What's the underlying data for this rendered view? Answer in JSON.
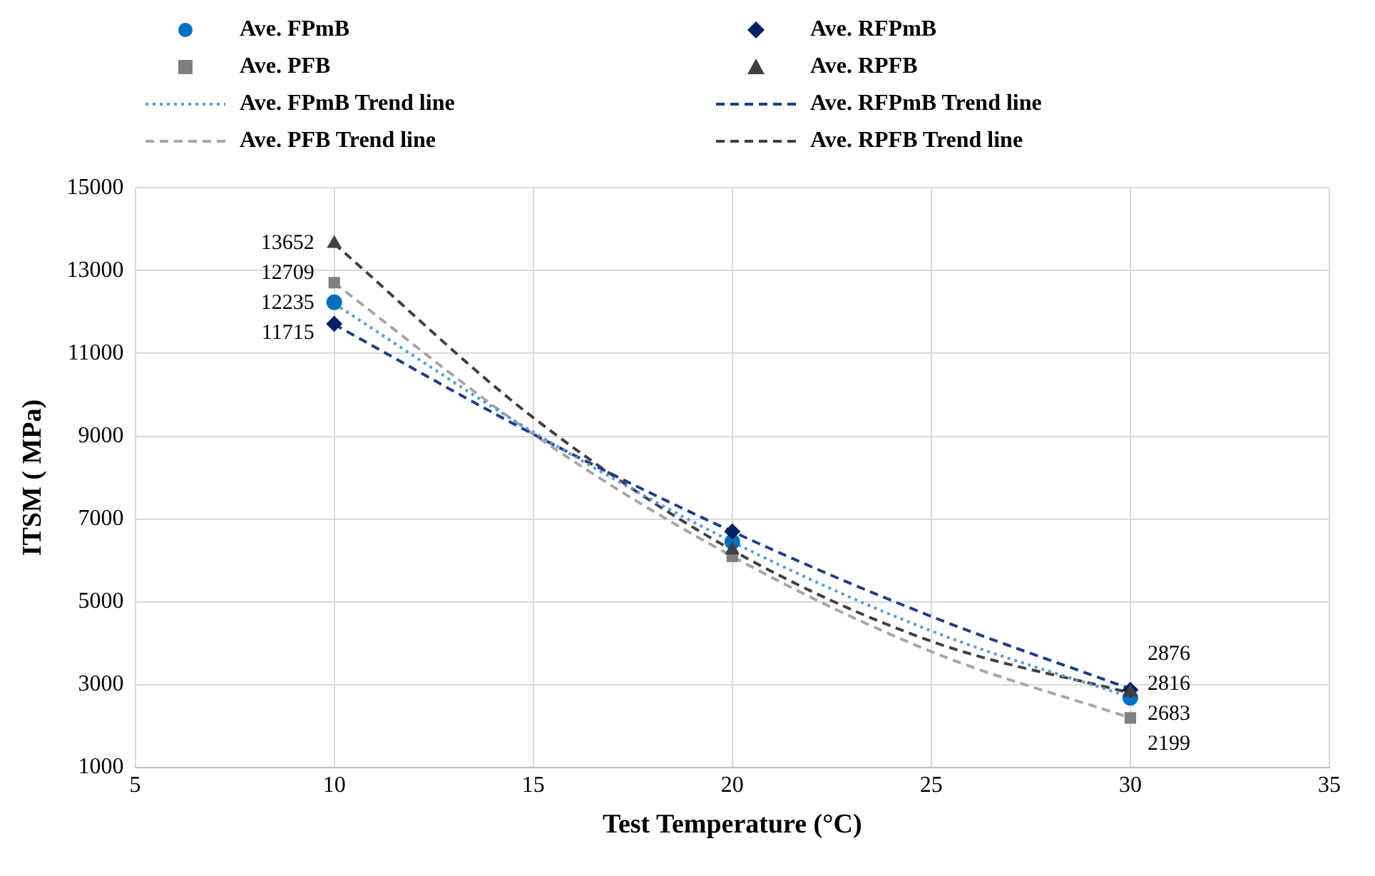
{
  "chart_data": {
    "type": "scatter",
    "xlabel": "Test Temperature (°C)",
    "ylabel": "ITSM ( MPa)",
    "xlim": [
      5,
      35
    ],
    "xticks": [
      5,
      10,
      15,
      20,
      25,
      30,
      35
    ],
    "ylim": [
      1000,
      15000
    ],
    "yticks": [
      1000,
      3000,
      5000,
      7000,
      9000,
      11000,
      13000,
      15000
    ],
    "grid": true,
    "legend": "top",
    "series": [
      {
        "name": "Ave. FPmB",
        "marker": "circle",
        "color": "#0070c0",
        "x": [
          10,
          20,
          30
        ],
        "values": [
          12235,
          6450,
          2683
        ],
        "value_labels": [
          "12235",
          null,
          "2683"
        ]
      },
      {
        "name": "Ave. RFPmB",
        "marker": "diamond",
        "color": "#002060",
        "x": [
          10,
          20,
          30
        ],
        "values": [
          11715,
          6700,
          2876
        ],
        "value_labels": [
          "11715",
          null,
          "2876"
        ]
      },
      {
        "name": "Ave. PFB",
        "marker": "square",
        "color": "#7f7f7f",
        "x": [
          10,
          20,
          30
        ],
        "values": [
          12709,
          6100,
          2199
        ],
        "value_labels": [
          "12709",
          null,
          "2199"
        ]
      },
      {
        "name": "Ave. RPFB",
        "marker": "triangle",
        "color": "#404040",
        "x": [
          10,
          20,
          30
        ],
        "values": [
          13652,
          6250,
          2816
        ],
        "value_labels": [
          "13652",
          null,
          "2816"
        ]
      },
      {
        "name": "Ave. FPmB Trend line",
        "type": "line",
        "marker": "none",
        "line_style": "dotted",
        "color": "#5b9bd5",
        "x": [
          10,
          15,
          20,
          25,
          30
        ],
        "values": [
          12200,
          9100,
          6450,
          4300,
          2700
        ]
      },
      {
        "name": "Ave. RFPmB Trend line",
        "type": "line",
        "marker": "none",
        "line_style": "dashed",
        "color": "#1f3c88",
        "x": [
          10,
          15,
          20,
          25,
          30
        ],
        "values": [
          11700,
          9050,
          6700,
          4650,
          2900
        ]
      },
      {
        "name": "Ave. PFB Trend line",
        "type": "line",
        "marker": "none",
        "line_style": "dashed",
        "color": "#a6a6a6",
        "x": [
          10,
          15,
          20,
          25,
          30
        ],
        "values": [
          12700,
          9050,
          6100,
          3800,
          2200
        ]
      },
      {
        "name": "Ave. RPFB Trend line",
        "type": "line",
        "marker": "none",
        "line_style": "dashed",
        "color": "#404040",
        "x": [
          10,
          15,
          20,
          25,
          30
        ],
        "values": [
          13650,
          9450,
          6250,
          4050,
          2800
        ]
      }
    ]
  }
}
